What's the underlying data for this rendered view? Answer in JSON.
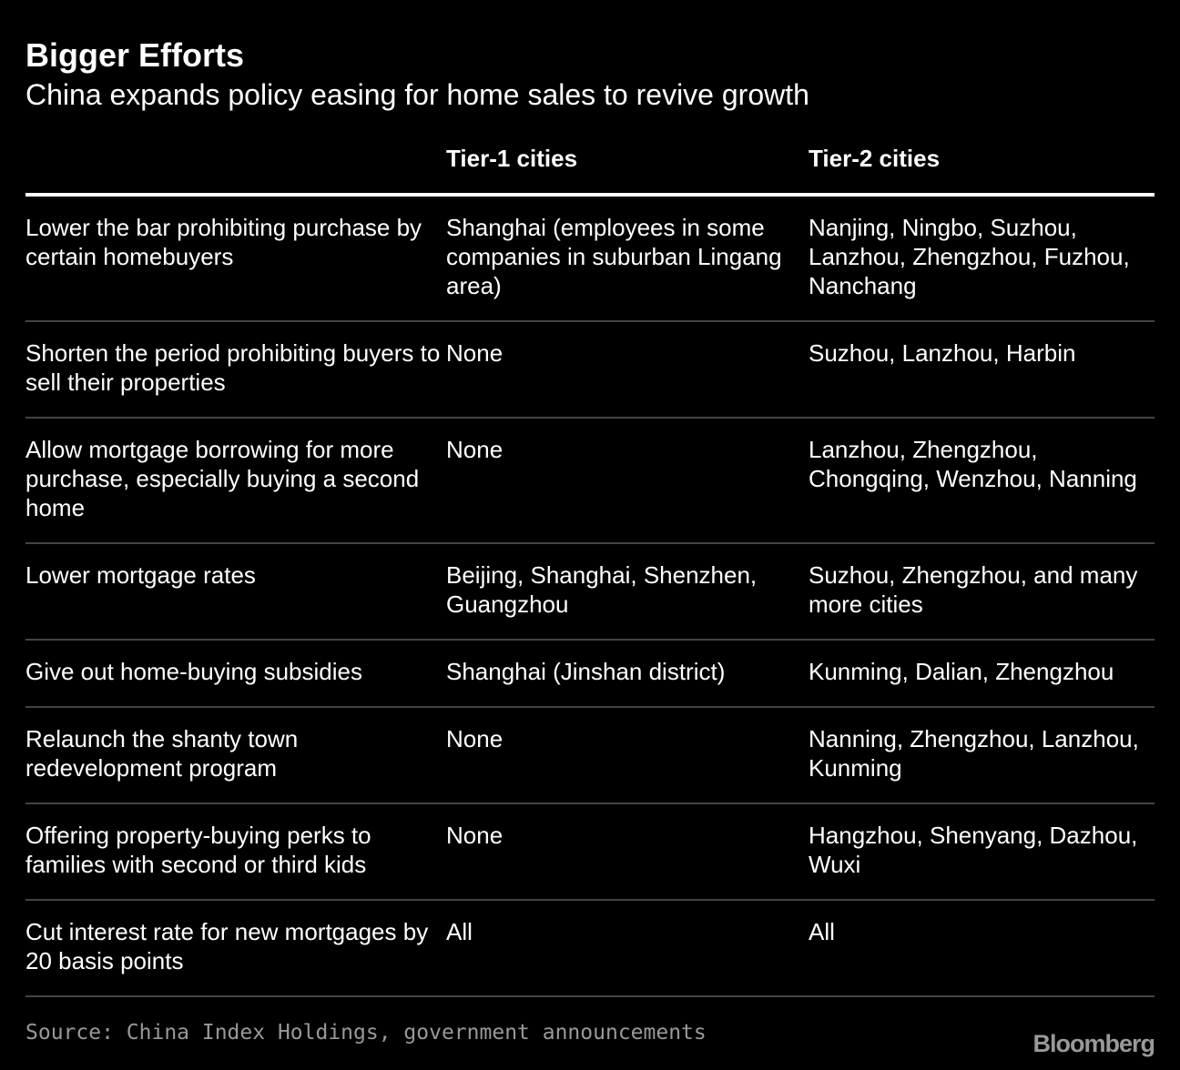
{
  "header": {
    "title": "Bigger Efforts",
    "subtitle": "China expands policy easing for home sales to revive growth"
  },
  "table": {
    "columns": [
      "",
      "Tier-1 cities",
      "Tier-2 cities"
    ],
    "rows": [
      [
        "Lower the bar prohibiting purchase by certain homebuyers",
        "Shanghai (employees in some companies in suburban Lingang area)",
        "Nanjing, Ningbo, Suzhou, Lanzhou, Zhengzhou, Fuzhou, Nanchang"
      ],
      [
        "Shorten the period prohibiting buyers to sell their properties",
        "None",
        "Suzhou, Lanzhou, Harbin"
      ],
      [
        "Allow mortgage borrowing for more purchase, especially buying a second home",
        "None",
        "Lanzhou, Zhengzhou, Chongqing, Wenzhou, Nanning"
      ],
      [
        "Lower mortgage rates",
        "Beijing, Shanghai, Shenzhen, Guangzhou",
        "Suzhou, Zhengzhou, and many more cities"
      ],
      [
        "Give out home-buying subsidies",
        "Shanghai (Jinshan district)",
        "Kunming, Dalian, Zhengzhou"
      ],
      [
        "Relaunch the shanty town redevelopment program",
        "None",
        "Nanning, Zhengzhou, Lanzhou, Kunming"
      ],
      [
        "Offering property-buying perks to families with second or third kids",
        "None",
        "Hangzhou, Shenyang, Dazhou, Wuxi"
      ],
      [
        "Cut interest rate for new mortgages by 20 basis points",
        "All",
        "All"
      ]
    ]
  },
  "footer": {
    "source": "Source: China Index Holdings, government announcements",
    "logo": "Bloomberg"
  }
}
